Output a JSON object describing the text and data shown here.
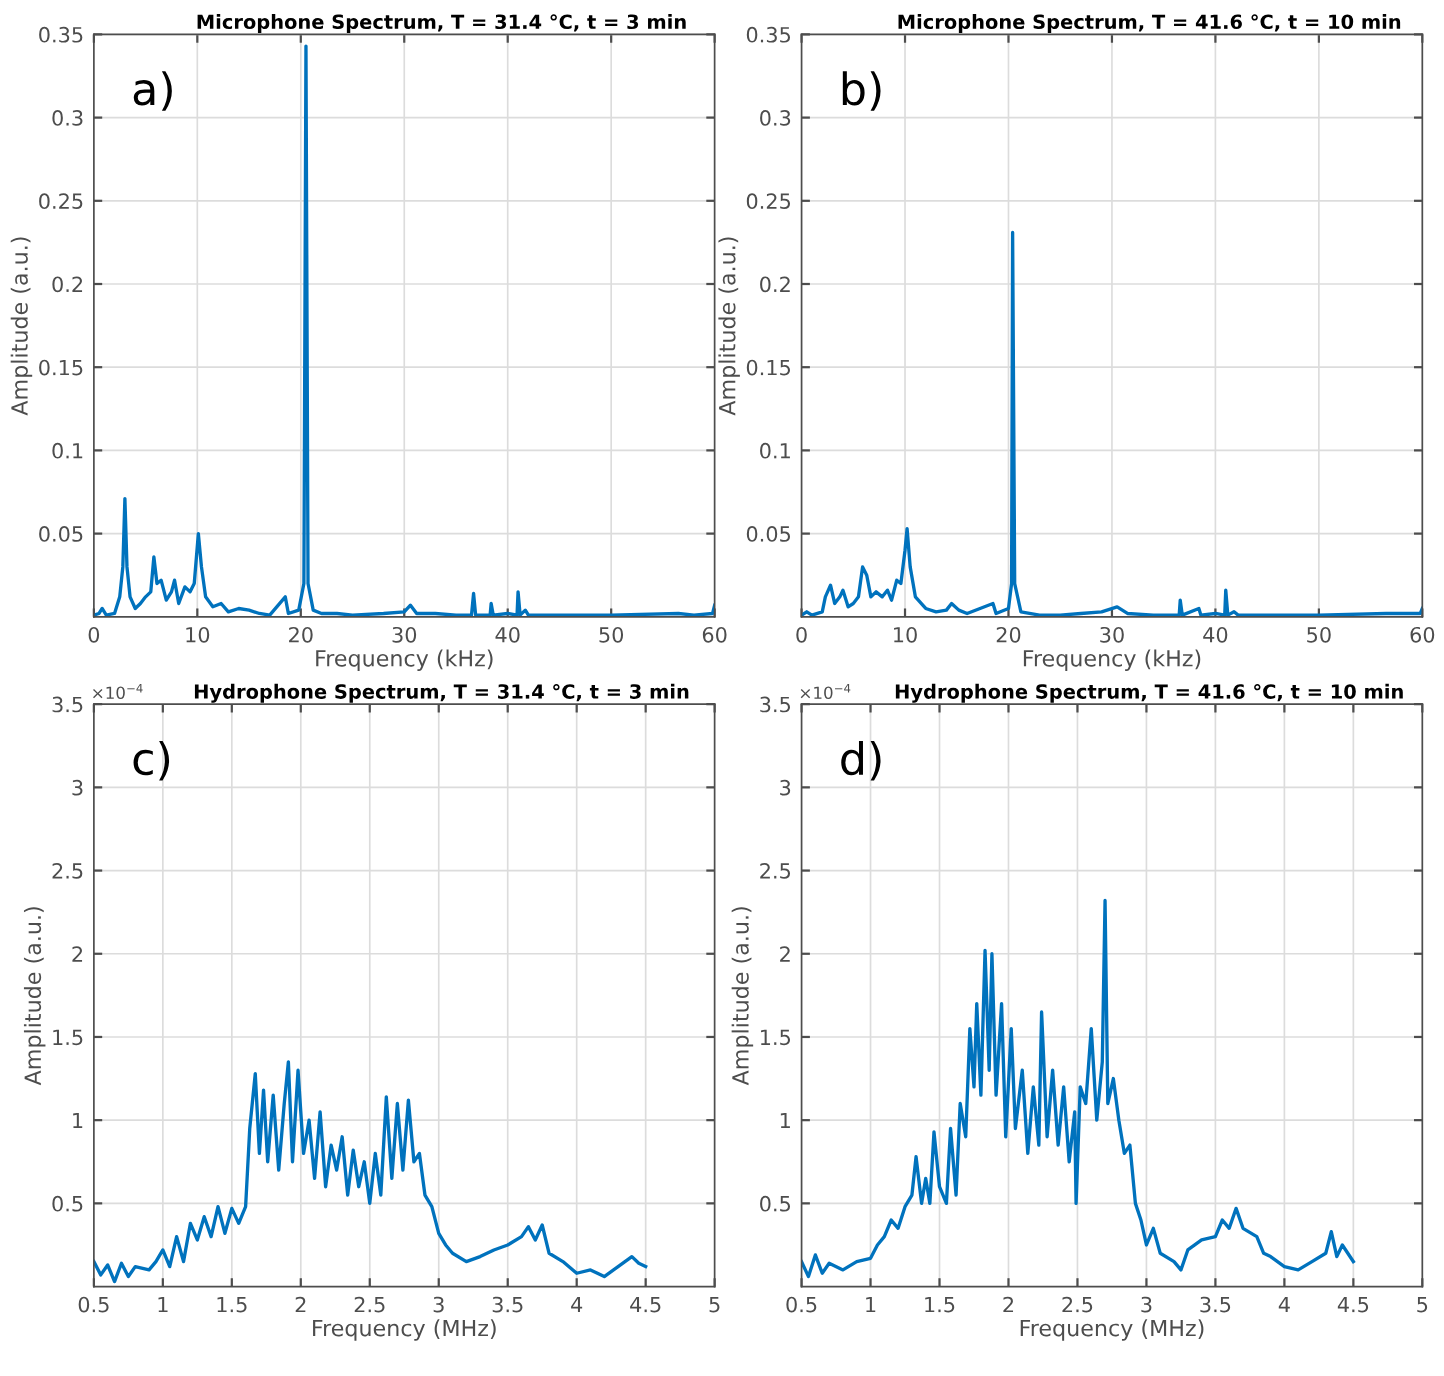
{
  "chart_data": [
    {
      "type": "line",
      "title": "Microphone Spectrum, T = 31.4 °C, t = 3 min",
      "xlabel": "Frequency (kHz)",
      "ylabel": "Amplitude (a.u.)",
      "annotations": [
        "a)"
      ],
      "xlim": [
        0,
        60
      ],
      "xticks": [
        0,
        10,
        20,
        30,
        40,
        50,
        60
      ],
      "ylim": [
        0,
        0.35
      ],
      "yticks": [
        0.05,
        0.1,
        0.15,
        0.2,
        0.25,
        0.3,
        0.35
      ],
      "grid": true,
      "series": [
        {
          "color": "#0072bd",
          "x": [
            0,
            0.5,
            0.8,
            1.2,
            2,
            2.5,
            2.8,
            3.0,
            3.2,
            3.5,
            4,
            4.5,
            5,
            5.5,
            5.8,
            6.1,
            6.5,
            7,
            7.5,
            7.8,
            8.2,
            8.8,
            9.3,
            9.7,
            10.1,
            10.4,
            10.8,
            11.5,
            12.3,
            13,
            14,
            15,
            16,
            17,
            18.5,
            18.8,
            19.8,
            20.3,
            20.5,
            20.7,
            21.2,
            22,
            23.5,
            25,
            28,
            30,
            30.6,
            31.2,
            33,
            35,
            36.5,
            36.7,
            36.9,
            38.3,
            38.4,
            38.6,
            40,
            40.9,
            41,
            41.2,
            41.7,
            42,
            45,
            50,
            56.5,
            58,
            59.8,
            60
          ],
          "values": [
            0.001,
            0.002,
            0.005,
            0.001,
            0.002,
            0.012,
            0.03,
            0.071,
            0.03,
            0.012,
            0.005,
            0.008,
            0.012,
            0.015,
            0.036,
            0.02,
            0.022,
            0.01,
            0.015,
            0.022,
            0.008,
            0.018,
            0.015,
            0.02,
            0.05,
            0.03,
            0.012,
            0.006,
            0.008,
            0.003,
            0.005,
            0.004,
            0.002,
            0.001,
            0.012,
            0.002,
            0.004,
            0.02,
            0.343,
            0.02,
            0.004,
            0.002,
            0.002,
            0.001,
            0.002,
            0.003,
            0.007,
            0.002,
            0.002,
            0.001,
            0.001,
            0.014,
            0.001,
            0.001,
            0.008,
            0.001,
            0.002,
            0.001,
            0.015,
            0.001,
            0.004,
            0.001,
            0.001,
            0.001,
            0.002,
            0.001,
            0.002,
            0.007
          ]
        }
      ]
    },
    {
      "type": "line",
      "title": "Microphone Spectrum, T = 41.6 °C, t = 10 min",
      "xlabel": "Frequency (kHz)",
      "ylabel": "Amplitude (a.u.)",
      "annotations": [
        "b)"
      ],
      "xlim": [
        0,
        60
      ],
      "xticks": [
        0,
        10,
        20,
        30,
        40,
        50,
        60
      ],
      "ylim": [
        0,
        0.35
      ],
      "yticks": [
        0.05,
        0.1,
        0.15,
        0.2,
        0.25,
        0.3,
        0.35
      ],
      "grid": true,
      "series": [
        {
          "color": "#0072bd",
          "x": [
            0,
            0.5,
            1,
            2,
            2.3,
            2.8,
            3.2,
            3.7,
            4,
            4.5,
            5,
            5.5,
            5.9,
            6.3,
            6.7,
            7.2,
            7.8,
            8.3,
            8.7,
            9.2,
            9.6,
            10,
            10.2,
            10.5,
            11,
            12,
            13,
            14,
            14.5,
            15.2,
            16,
            18.5,
            18.8,
            20,
            20.3,
            20.4,
            20.6,
            21.2,
            23,
            25,
            27,
            29,
            30.5,
            31.5,
            34,
            36.5,
            36.6,
            36.8,
            38.4,
            38.6,
            40,
            40.9,
            41,
            41.2,
            41.8,
            42.2,
            50,
            56.5,
            59.8,
            60
          ],
          "values": [
            0.001,
            0.003,
            0.001,
            0.003,
            0.012,
            0.019,
            0.008,
            0.012,
            0.016,
            0.006,
            0.008,
            0.012,
            0.03,
            0.025,
            0.012,
            0.015,
            0.012,
            0.016,
            0.01,
            0.022,
            0.02,
            0.04,
            0.053,
            0.03,
            0.012,
            0.005,
            0.003,
            0.004,
            0.008,
            0.004,
            0.002,
            0.008,
            0.002,
            0.005,
            0.02,
            0.231,
            0.02,
            0.003,
            0.001,
            0.001,
            0.002,
            0.003,
            0.006,
            0.002,
            0.001,
            0.001,
            0.01,
            0.001,
            0.005,
            0.001,
            0.002,
            0.001,
            0.016,
            0.001,
            0.003,
            0.001,
            0.001,
            0.002,
            0.002,
            0.005
          ]
        }
      ]
    },
    {
      "type": "line",
      "title": "Hydrophone Spectrum, T = 31.4 °C, t = 3 min",
      "xlabel": "Frequency (MHz)",
      "ylabel": "Amplitude (a.u.)",
      "annotations": [
        "c)",
        "×10$^{−4}$"
      ],
      "xlim": [
        0.5,
        5
      ],
      "xticks": [
        0.5,
        1,
        1.5,
        2,
        2.5,
        3,
        3.5,
        4,
        4.5,
        5
      ],
      "ylim": [
        0,
        3.5
      ],
      "yticks": [
        0.5,
        1,
        1.5,
        2,
        2.5,
        3,
        3.5
      ],
      "grid": true,
      "series": [
        {
          "color": "#0072bd",
          "x": [
            0.5,
            0.55,
            0.6,
            0.65,
            0.7,
            0.75,
            0.8,
            0.9,
            0.95,
            1.0,
            1.05,
            1.1,
            1.15,
            1.2,
            1.25,
            1.3,
            1.35,
            1.4,
            1.45,
            1.5,
            1.55,
            1.6,
            1.63,
            1.67,
            1.7,
            1.73,
            1.76,
            1.8,
            1.84,
            1.88,
            1.91,
            1.94,
            1.98,
            2.02,
            2.06,
            2.1,
            2.14,
            2.18,
            2.22,
            2.26,
            2.3,
            2.34,
            2.38,
            2.42,
            2.46,
            2.5,
            2.54,
            2.58,
            2.62,
            2.66,
            2.7,
            2.74,
            2.78,
            2.82,
            2.86,
            2.9,
            2.95,
            3.0,
            3.05,
            3.1,
            3.2,
            3.3,
            3.4,
            3.5,
            3.6,
            3.65,
            3.7,
            3.75,
            3.8,
            3.9,
            4.0,
            4.1,
            4.2,
            4.3,
            4.4,
            4.45,
            4.5
          ],
          "values": [
            0.15,
            0.07,
            0.13,
            0.03,
            0.14,
            0.06,
            0.12,
            0.1,
            0.15,
            0.22,
            0.12,
            0.3,
            0.15,
            0.38,
            0.28,
            0.42,
            0.3,
            0.48,
            0.32,
            0.47,
            0.38,
            0.48,
            0.95,
            1.28,
            0.8,
            1.18,
            0.75,
            1.15,
            0.7,
            1.1,
            1.35,
            0.75,
            1.3,
            0.8,
            1.0,
            0.65,
            1.05,
            0.6,
            0.85,
            0.7,
            0.9,
            0.55,
            0.82,
            0.6,
            0.75,
            0.5,
            0.8,
            0.55,
            1.14,
            0.65,
            1.1,
            0.7,
            1.12,
            0.75,
            0.8,
            0.55,
            0.48,
            0.32,
            0.25,
            0.2,
            0.15,
            0.18,
            0.22,
            0.25,
            0.3,
            0.36,
            0.28,
            0.37,
            0.2,
            0.15,
            0.08,
            0.1,
            0.06,
            0.12,
            0.18,
            0.14,
            0.12
          ]
        }
      ]
    },
    {
      "type": "line",
      "title": "Hydrophone Spectrum, T = 41.6 °C, t = 10 min",
      "xlabel": "Frequency (MHz)",
      "ylabel": "Amplitude (a.u.)",
      "annotations": [
        "d)",
        "×10$^{−4}$"
      ],
      "xlim": [
        0.5,
        5
      ],
      "xticks": [
        0.5,
        1,
        1.5,
        2,
        2.5,
        3,
        3.5,
        4,
        4.5,
        5
      ],
      "ylim": [
        0,
        3.5
      ],
      "yticks": [
        0.5,
        1,
        1.5,
        2,
        2.5,
        3,
        3.5
      ],
      "grid": true,
      "series": [
        {
          "color": "#0072bd",
          "x": [
            0.5,
            0.55,
            0.6,
            0.65,
            0.7,
            0.8,
            0.9,
            1.0,
            1.05,
            1.1,
            1.15,
            1.2,
            1.25,
            1.3,
            1.33,
            1.37,
            1.4,
            1.43,
            1.46,
            1.5,
            1.55,
            1.58,
            1.62,
            1.65,
            1.69,
            1.72,
            1.75,
            1.77,
            1.8,
            1.83,
            1.86,
            1.88,
            1.91,
            1.95,
            1.98,
            2.02,
            2.05,
            2.1,
            2.14,
            2.18,
            2.22,
            2.24,
            2.28,
            2.32,
            2.36,
            2.4,
            2.44,
            2.48,
            2.49,
            2.52,
            2.56,
            2.6,
            2.64,
            2.68,
            2.7,
            2.72,
            2.76,
            2.8,
            2.84,
            2.88,
            2.92,
            2.96,
            3.0,
            3.05,
            3.1,
            3.2,
            3.25,
            3.3,
            3.4,
            3.5,
            3.55,
            3.6,
            3.65,
            3.7,
            3.8,
            3.85,
            3.9,
            4.0,
            4.1,
            4.2,
            4.3,
            4.34,
            4.38,
            4.42,
            4.5
          ],
          "values": [
            0.15,
            0.06,
            0.19,
            0.08,
            0.14,
            0.1,
            0.15,
            0.17,
            0.25,
            0.3,
            0.4,
            0.35,
            0.48,
            0.55,
            0.78,
            0.5,
            0.65,
            0.5,
            0.93,
            0.6,
            0.5,
            0.95,
            0.55,
            1.1,
            0.9,
            1.55,
            1.2,
            1.7,
            1.15,
            2.02,
            1.3,
            2.0,
            1.15,
            1.7,
            0.9,
            1.55,
            0.95,
            1.3,
            0.8,
            1.2,
            0.85,
            1.65,
            0.9,
            1.3,
            0.85,
            1.2,
            0.75,
            1.05,
            0.5,
            1.2,
            1.1,
            1.55,
            1.0,
            1.35,
            2.32,
            1.1,
            1.25,
            1.0,
            0.8,
            0.85,
            0.5,
            0.4,
            0.25,
            0.35,
            0.2,
            0.15,
            0.1,
            0.22,
            0.28,
            0.3,
            0.4,
            0.35,
            0.47,
            0.35,
            0.3,
            0.2,
            0.18,
            0.12,
            0.1,
            0.15,
            0.2,
            0.33,
            0.18,
            0.25,
            0.15
          ]
        }
      ]
    }
  ]
}
